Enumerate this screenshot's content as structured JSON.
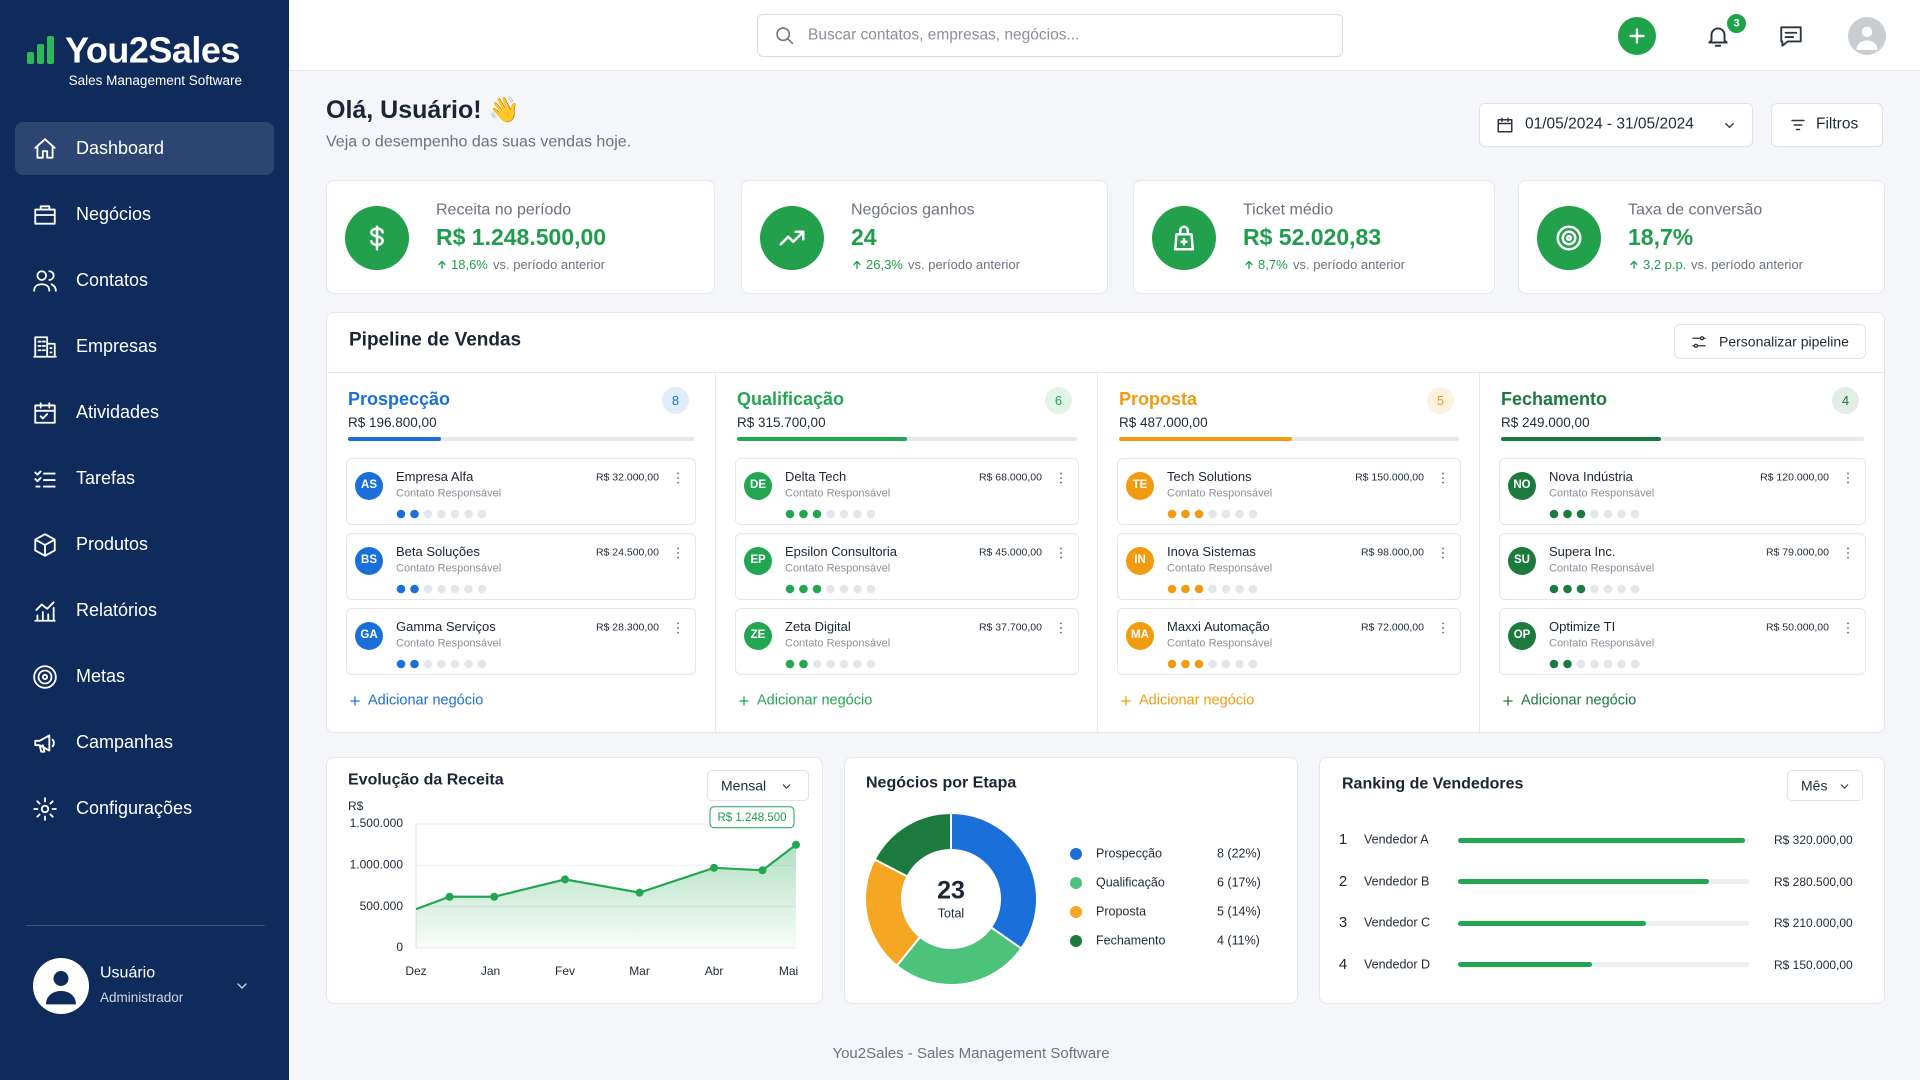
{
  "brand": {
    "name": "You2Sales",
    "tagline": "Sales Management Software"
  },
  "nav": [
    {
      "label": "Dashboard",
      "active": true
    },
    {
      "label": "Negócios",
      "active": false
    },
    {
      "label": "Contatos",
      "active": false
    },
    {
      "label": "Empresas",
      "active": false
    },
    {
      "label": "Atividades",
      "active": false
    },
    {
      "label": "Tarefas",
      "active": false
    },
    {
      "label": "Produtos",
      "active": false
    },
    {
      "label": "Relatórios",
      "active": false
    },
    {
      "label": "Metas",
      "active": false
    },
    {
      "label": "Campanhas",
      "active": false
    },
    {
      "label": "Configurações",
      "active": false
    }
  ],
  "user": {
    "name": "Usuário",
    "role": "Administrador"
  },
  "search": {
    "placeholder": "Buscar contatos, empresas, negócios..."
  },
  "notifications": 3,
  "greeting": {
    "title": "Olá, Usuário! 👋",
    "subtitle": "Veja o desempenho das suas vendas hoje."
  },
  "date_range": "01/05/2024 - 31/05/2024",
  "filters": "Filtros",
  "kpis": [
    {
      "label": "Receita no período",
      "value": "R$ 1.248.500,00",
      "change": "18,6%",
      "note": "vs. período anterior"
    },
    {
      "label": "Negócios ganhos",
      "value": "24",
      "change": "26,3%",
      "note": "vs. período anterior"
    },
    {
      "label": "Ticket médio",
      "value": "R$ 52.020,83",
      "change": "8,7%",
      "note": "vs. período anterior"
    },
    {
      "label": "Taxa de conversão",
      "value": "18,7%",
      "change": "3,2 p.p.",
      "note": "vs. período anterior"
    }
  ],
  "pipeline": {
    "title": "Pipeline de Vendas",
    "customize": "Personalizar pipeline",
    "add_label": "Adicionar negócio",
    "deal_steps": 7,
    "stages": [
      {
        "name": "Prospecção",
        "count": 8,
        "total": "R$ 196.800,00",
        "color": "#1a6fd8",
        "progress": 27,
        "deals": [
          {
            "initials": "AS",
            "name": "Empresa Alfa",
            "contact": "Contato Responsável",
            "value": "R$ 32.000,00",
            "step": 2
          },
          {
            "initials": "BS",
            "name": "Beta Soluções",
            "contact": "Contato Responsável",
            "value": "R$ 24.500,00",
            "step": 2
          },
          {
            "initials": "GA",
            "name": "Gamma Serviços",
            "contact": "Contato Responsável",
            "value": "R$ 28.300,00",
            "step": 2
          }
        ]
      },
      {
        "name": "Qualificação",
        "count": 6,
        "total": "R$ 315.700,00",
        "color": "#22a652",
        "progress": 50,
        "deals": [
          {
            "initials": "DE",
            "name": "Delta Tech",
            "contact": "Contato Responsável",
            "value": "R$ 68.000,00",
            "step": 3
          },
          {
            "initials": "EP",
            "name": "Epsilon Consultoria",
            "contact": "Contato Responsável",
            "value": "R$ 45.000,00",
            "step": 3
          },
          {
            "initials": "ZE",
            "name": "Zeta Digital",
            "contact": "Contato Responsável",
            "value": "R$ 37.700,00",
            "step": 2
          }
        ]
      },
      {
        "name": "Proposta",
        "count": 5,
        "total": "R$ 487.000,00",
        "color": "#f29b11",
        "progress": 51,
        "deals": [
          {
            "initials": "TE",
            "name": "Tech Solutions",
            "contact": "Contato Responsável",
            "value": "R$ 150.000,00",
            "step": 3
          },
          {
            "initials": "IN",
            "name": "Inova Sistemas",
            "contact": "Contato Responsável",
            "value": "R$ 98.000,00",
            "step": 3
          },
          {
            "initials": "MA",
            "name": "Maxxi Automação",
            "contact": "Contato Responsável",
            "value": "R$ 72.000,00",
            "step": 3
          }
        ]
      },
      {
        "name": "Fechamento",
        "count": 4,
        "total": "R$ 249.000,00",
        "color": "#1c7a3e",
        "progress": 44,
        "deals": [
          {
            "initials": "NO",
            "name": "Nova Indústria",
            "contact": "Contato Responsável",
            "value": "R$ 120.000,00",
            "step": 3
          },
          {
            "initials": "SU",
            "name": "Supera Inc.",
            "contact": "Contato Responsável",
            "value": "R$ 79.000,00",
            "step": 3
          },
          {
            "initials": "OP",
            "name": "Optimize TI",
            "contact": "Contato Responsável",
            "value": "R$ 50.000,00",
            "step": 2
          }
        ]
      }
    ]
  },
  "revenue_chart": {
    "type": "line",
    "title": "Evolução da Receita",
    "period": "Mensal",
    "y_label": "R$",
    "color": "#22a652",
    "x": [
      0,
      0.45,
      1.05,
      2,
      3,
      4,
      4.65,
      5.1
    ],
    "values": [
      470000,
      620000,
      620000,
      830000,
      670000,
      970000,
      940000,
      1248500
    ],
    "value_labels": [
      null,
      null,
      null,
      null,
      null,
      null,
      null,
      "R$ 1.248.500"
    ],
    "xlim": [
      0,
      5.1
    ],
    "xticks": [
      {
        "value": 0,
        "label": "Dez"
      },
      {
        "value": 1,
        "label": "Jan"
      },
      {
        "value": 2,
        "label": "Fev"
      },
      {
        "value": 3,
        "label": "Mar"
      },
      {
        "value": 4,
        "label": "Abr"
      },
      {
        "value": 5,
        "label": "Mai"
      }
    ],
    "ylim": [
      0,
      1500000
    ],
    "yticks": [
      0,
      {
        "value": 500000,
        "label": "500.000"
      },
      {
        "value": 1000000,
        "label": "1.000.000"
      },
      {
        "value": 1500000,
        "label": "1.500.000"
      }
    ],
    "grid": true
  },
  "stage_chart": {
    "type": "donut",
    "title": "Negócios por Etapa",
    "total": 23,
    "total_label": "Total",
    "categories": [
      "Prospecção",
      "Qualificação",
      "Proposta",
      "Fechamento"
    ],
    "values": [
      8,
      6,
      5,
      4
    ],
    "value_labels": [
      "8 (22%)",
      "6 (17%)",
      "5 (14%)",
      "4 (11%)"
    ],
    "colors": [
      "#1a6fd8",
      "#4cc27a",
      "#f5a623",
      "#1c7a3e"
    ]
  },
  "ranking_chart": {
    "type": "bar",
    "orientation": "horizontal",
    "title": "Ranking de Vendedores",
    "period": "Mês",
    "ranks": [
      1,
      2,
      3,
      4
    ],
    "categories": [
      "Vendedor A",
      "Vendedor B",
      "Vendedor C",
      "Vendedor D"
    ],
    "values": [
      320000,
      280500,
      210000,
      150000
    ],
    "value_labels": [
      "R$ 320.000,00",
      "R$ 280.500,00",
      "R$ 210.000,00",
      "R$ 150.000,00"
    ],
    "xlim": [
      0,
      325000
    ],
    "color": "#22a652"
  },
  "footer": "You2Sales - Sales Management Software"
}
